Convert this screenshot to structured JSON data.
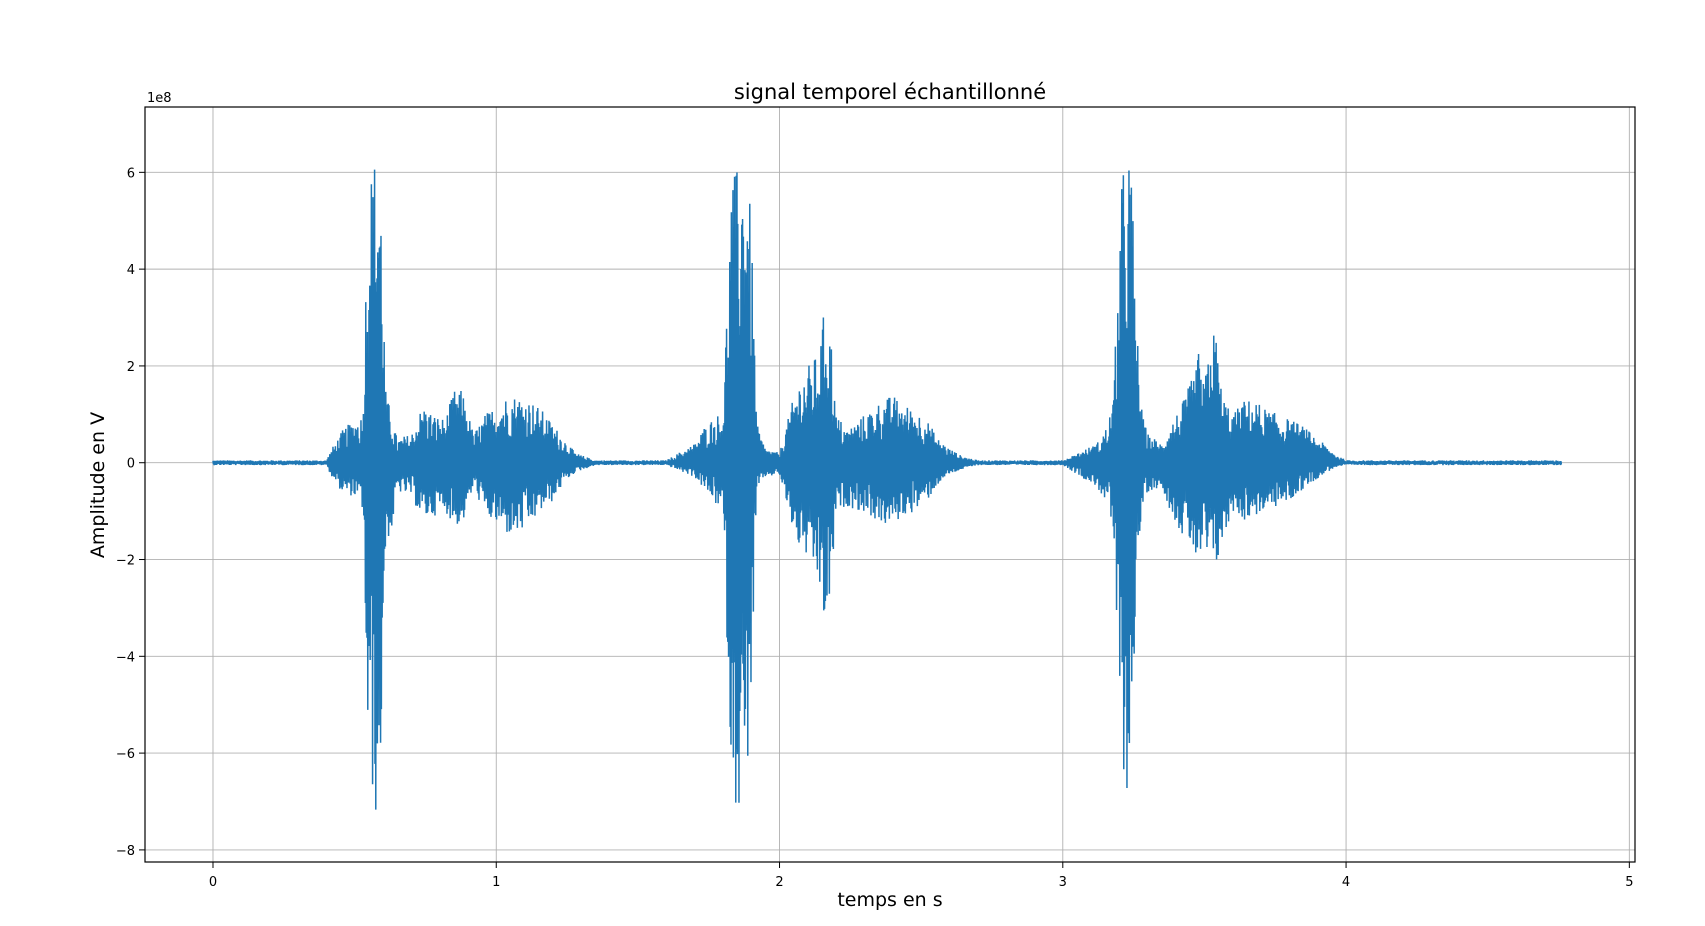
{
  "chart_data": {
    "type": "line",
    "title": "signal temporel échantillonné",
    "xlabel": "temps en s",
    "ylabel": "Amplitude en V",
    "y_offset_label": "1e8",
    "xlim": [
      -0.24,
      5.02
    ],
    "ylim": [
      -8.25,
      7.35
    ],
    "x_ticks": [
      0,
      1,
      2,
      3,
      4,
      5
    ],
    "y_ticks": [
      -8,
      -6,
      -4,
      -2,
      0,
      2,
      4,
      6
    ],
    "x_tick_labels": [
      "0",
      "1",
      "2",
      "3",
      "4",
      "5"
    ],
    "y_tick_labels": [
      "−8",
      "−6",
      "−4",
      "−2",
      "0",
      "2",
      "4",
      "6"
    ],
    "grid": true,
    "line_color": "#1f77b4",
    "series": [
      {
        "envelope_x": [
          0.0,
          0.4,
          0.42,
          0.46,
          0.5,
          0.53,
          0.545,
          0.56,
          0.58,
          0.59,
          0.61,
          0.63,
          0.65,
          0.7,
          0.74,
          0.78,
          0.82,
          0.85,
          0.88,
          0.92,
          0.96,
          1.0,
          1.04,
          1.08,
          1.12,
          1.16,
          1.2,
          1.24,
          1.28,
          1.35,
          1.6,
          1.7,
          1.74,
          1.78,
          1.8,
          1.83,
          1.85,
          1.87,
          1.88,
          1.9,
          1.92,
          1.95,
          2.0,
          2.03,
          2.06,
          2.1,
          2.14,
          2.16,
          2.18,
          2.2,
          2.24,
          2.28,
          2.32,
          2.36,
          2.4,
          2.44,
          2.48,
          2.52,
          2.56,
          2.6,
          2.64,
          2.7,
          3.0,
          3.12,
          3.16,
          3.18,
          3.2,
          3.21,
          3.23,
          3.24,
          3.26,
          3.28,
          3.3,
          3.35,
          3.38,
          3.42,
          3.46,
          3.48,
          3.5,
          3.52,
          3.54,
          3.56,
          3.6,
          3.64,
          3.68,
          3.72,
          3.76,
          3.8,
          3.84,
          3.88,
          3.92,
          3.96,
          4.0,
          4.2,
          4.76
        ],
        "envelope_upper": [
          0.05,
          0.05,
          0.3,
          0.7,
          0.9,
          1.0,
          5.4,
          6.2,
          6.55,
          6.3,
          1.5,
          1.0,
          0.5,
          0.6,
          1.2,
          1.0,
          0.9,
          1.5,
          1.5,
          0.6,
          1.0,
          1.2,
          1.4,
          1.4,
          1.3,
          1.1,
          0.8,
          0.5,
          0.2,
          0.05,
          0.05,
          0.4,
          0.8,
          1.0,
          1.0,
          5.8,
          6.1,
          6.3,
          6.55,
          5.0,
          0.8,
          0.3,
          0.2,
          0.9,
          1.6,
          2.0,
          2.3,
          3.3,
          2.8,
          1.0,
          0.7,
          0.9,
          1.1,
          1.3,
          1.4,
          1.2,
          1.1,
          0.9,
          0.5,
          0.3,
          0.15,
          0.05,
          0.05,
          0.4,
          0.8,
          1.5,
          4.8,
          6.0,
          6.6,
          6.5,
          3.0,
          1.0,
          0.6,
          0.4,
          0.8,
          1.2,
          1.8,
          2.3,
          1.6,
          2.6,
          2.8,
          1.5,
          1.0,
          1.3,
          1.3,
          1.1,
          1.0,
          0.9,
          0.8,
          0.6,
          0.4,
          0.2,
          0.05,
          0.05,
          0.05
        ],
        "envelope_lower": [
          -0.05,
          -0.05,
          -0.3,
          -0.65,
          -0.7,
          -1.0,
          -5.9,
          -6.8,
          -7.55,
          -6.7,
          -1.6,
          -1.5,
          -0.6,
          -0.7,
          -1.2,
          -1.1,
          -1.0,
          -1.3,
          -1.3,
          -0.5,
          -1.1,
          -1.3,
          -1.5,
          -1.5,
          -1.3,
          -1.0,
          -0.8,
          -0.4,
          -0.2,
          -0.05,
          -0.05,
          -0.3,
          -0.6,
          -0.9,
          -1.0,
          -6.5,
          -7.2,
          -7.4,
          -7.0,
          -5.0,
          -0.6,
          -0.3,
          -0.25,
          -1.0,
          -1.7,
          -2.0,
          -2.6,
          -3.5,
          -2.9,
          -1.0,
          -0.9,
          -1.0,
          -1.1,
          -1.3,
          -1.3,
          -1.1,
          -1.0,
          -0.8,
          -0.45,
          -0.25,
          -0.15,
          -0.05,
          -0.05,
          -0.5,
          -0.9,
          -1.6,
          -5.5,
          -6.4,
          -6.9,
          -6.3,
          -2.5,
          -1.0,
          -0.6,
          -0.5,
          -1.0,
          -1.5,
          -1.8,
          -2.3,
          -1.8,
          -2.3,
          -2.2,
          -1.8,
          -1.0,
          -1.2,
          -1.1,
          -1.0,
          -0.9,
          -0.8,
          -0.6,
          -0.4,
          -0.25,
          -0.1,
          -0.05,
          -0.05,
          -0.05
        ]
      }
    ]
  }
}
